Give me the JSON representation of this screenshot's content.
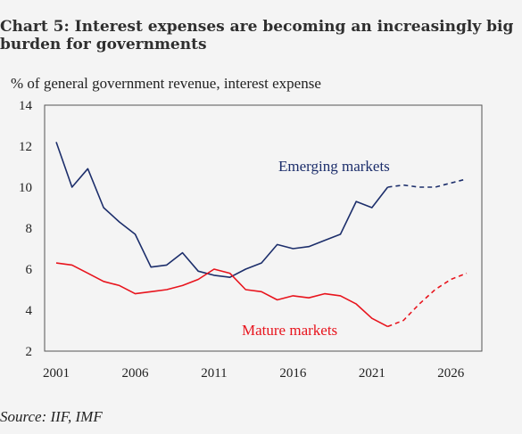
{
  "title": "Chart 5: Interest expenses are becoming an increasingly big\nburden for governments",
  "source": "Source: IIF, IMF",
  "chart_data": {
    "type": "line",
    "ylabel": "% of general government revenue, interest expense",
    "xlim": [
      2001,
      2027
    ],
    "ylim": [
      2,
      14
    ],
    "x_ticks": [
      2001,
      2006,
      2011,
      2016,
      2021,
      2026
    ],
    "y_ticks": [
      2,
      4,
      6,
      8,
      10,
      12,
      14
    ],
    "grid": false,
    "series": [
      {
        "name": "Emerging markets",
        "color": "#1c2e6b",
        "x": [
          2001,
          2002,
          2003,
          2004,
          2005,
          2006,
          2007,
          2008,
          2009,
          2010,
          2011,
          2012,
          2013,
          2014,
          2015,
          2016,
          2017,
          2018,
          2019,
          2020,
          2021,
          2022
        ],
        "values": [
          12.2,
          10.0,
          10.9,
          9.0,
          8.3,
          7.7,
          6.1,
          6.2,
          6.8,
          5.9,
          5.7,
          5.6,
          6.0,
          6.3,
          7.2,
          7.0,
          7.1,
          7.4,
          7.7,
          9.3,
          9.0,
          10.0
        ],
        "projection_x": [
          2022,
          2023,
          2024,
          2025,
          2026,
          2027
        ],
        "projection_values": [
          10.0,
          10.1,
          10.0,
          10.0,
          10.2,
          10.4
        ]
      },
      {
        "name": "Mature markets",
        "color": "#e8141d",
        "x": [
          2001,
          2002,
          2003,
          2004,
          2005,
          2006,
          2007,
          2008,
          2009,
          2010,
          2011,
          2012,
          2013,
          2014,
          2015,
          2016,
          2017,
          2018,
          2019,
          2020,
          2021,
          2022
        ],
        "values": [
          6.3,
          6.2,
          5.8,
          5.4,
          5.2,
          4.8,
          4.9,
          5.0,
          5.2,
          5.5,
          6.0,
          5.8,
          5.0,
          4.9,
          4.5,
          4.7,
          4.6,
          4.8,
          4.7,
          4.3,
          3.6,
          3.2
        ],
        "projection_x": [
          2022,
          2023,
          2024,
          2025,
          2026,
          2027
        ],
        "projection_values": [
          3.2,
          3.5,
          4.3,
          5.0,
          5.5,
          5.8
        ]
      }
    ]
  }
}
